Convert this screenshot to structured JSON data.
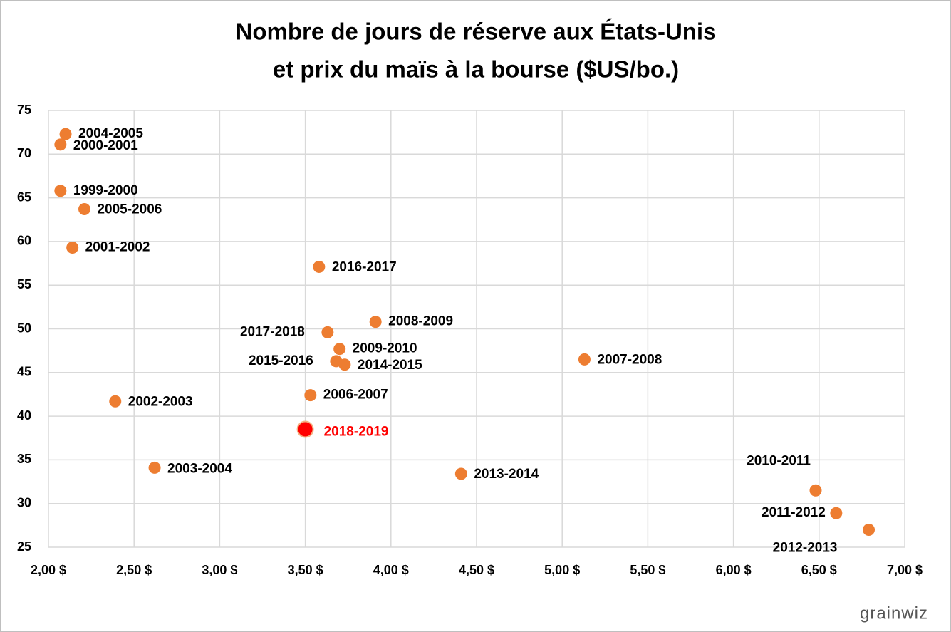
{
  "chart_data": {
    "type": "scatter",
    "title": [
      "Nombre de jours de réserve aux États-Unis",
      "et prix du maïs à la bourse ($US/bo.)"
    ],
    "labels": [
      "2004-2005",
      "2000-2001",
      "1999-2000",
      "2005-2006",
      "2001-2002",
      "2016-2017",
      "2008-2009",
      "2017-2018",
      "2009-2010",
      "2015-2016",
      "2014-2015",
      "2007-2008",
      "2006-2007",
      "2002-2003",
      "2018-2019",
      "2003-2004",
      "2013-2014",
      "2010-2011",
      "2011-2012",
      "2012-2013"
    ],
    "x": [
      2.1,
      2.07,
      2.07,
      2.21,
      2.14,
      3.58,
      3.91,
      3.63,
      3.7,
      3.68,
      3.73,
      5.13,
      3.53,
      2.39,
      3.5,
      2.62,
      4.41,
      6.48,
      6.6,
      6.79
    ],
    "y": [
      72.3,
      71.1,
      65.8,
      63.7,
      59.3,
      57.1,
      50.8,
      49.6,
      47.7,
      46.3,
      45.9,
      46.5,
      42.4,
      41.7,
      38.5,
      34.1,
      33.4,
      31.5,
      28.9,
      27.0
    ],
    "colors": [
      "#ed7d31",
      "#ed7d31",
      "#ed7d31",
      "#ed7d31",
      "#ed7d31",
      "#ed7d31",
      "#ed7d31",
      "#ed7d31",
      "#ed7d31",
      "#ed7d31",
      "#ed7d31",
      "#ed7d31",
      "#ed7d31",
      "#ed7d31",
      "#ff0000",
      "#ed7d31",
      "#ed7d31",
      "#ed7d31",
      "#ed7d31",
      "#ed7d31"
    ],
    "xlim": [
      2,
      7
    ],
    "xticks": [
      {
        "value": 2,
        "label": "2,00 $"
      },
      {
        "value": 2.5,
        "label": "2,50 $"
      },
      {
        "value": 3,
        "label": "3,00 $"
      },
      {
        "value": 3.5,
        "label": "3,50 $"
      },
      {
        "value": 4,
        "label": "4,00 $"
      },
      {
        "value": 4.5,
        "label": "4,50 $"
      },
      {
        "value": 5,
        "label": "5,00 $"
      },
      {
        "value": 5.5,
        "label": "5,50 $"
      },
      {
        "value": 6,
        "label": "6,00 $"
      },
      {
        "value": 6.5,
        "label": "6,50 $"
      },
      {
        "value": 7,
        "label": "7,00 $"
      }
    ],
    "ylim": [
      25,
      75
    ],
    "yticks": [
      25,
      30,
      35,
      40,
      45,
      50,
      55,
      60,
      65,
      70,
      75
    ],
    "grid": true,
    "logo": "grainwiz"
  }
}
